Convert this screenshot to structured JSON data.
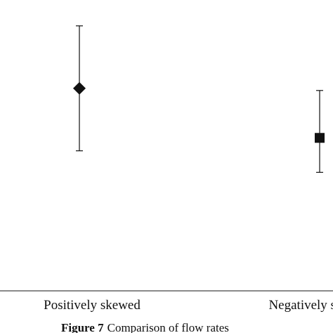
{
  "chart_data": {
    "type": "scatter",
    "chart_style": "error-bar",
    "categories": [
      "Positively skewed",
      "Negatively skewed"
    ],
    "points": [
      {
        "category": "Positively skewed",
        "marker": "diamond",
        "value": 0.59,
        "error_low": 0.3,
        "error_high": 0.88
      },
      {
        "category": "Negatively skewed",
        "marker": "square",
        "value": 0.36,
        "error_low": 0.2,
        "error_high": 0.58
      }
    ],
    "ylim": [
      -0.35,
      1.0
    ],
    "grid": false,
    "caption_label": "Figure 7",
    "caption_text": "Comparison of flow rates",
    "colors": {
      "marker": "#111111",
      "axis": "#444444",
      "text": "#111111"
    }
  }
}
